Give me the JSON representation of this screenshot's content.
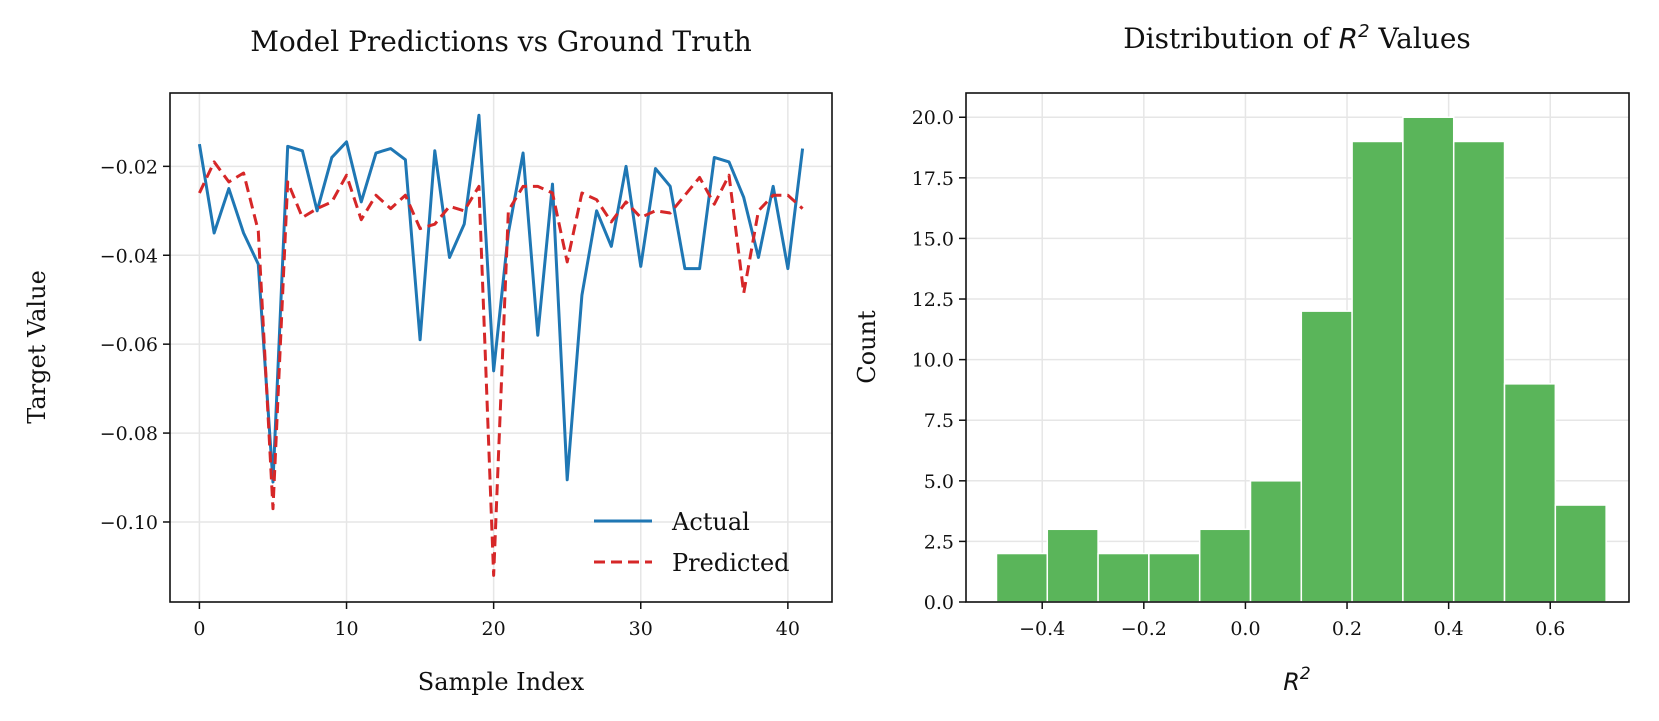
{
  "chart_data": [
    {
      "type": "line",
      "title": "Model Predictions vs Ground Truth",
      "xlabel": "Sample Index",
      "ylabel": "Target Value",
      "xlim": [
        -2,
        43
      ],
      "ylim": [
        -0.118,
        -0.0035
      ],
      "xticks": [
        0,
        10,
        20,
        30,
        40
      ],
      "xtick_labels": [
        "0",
        "10",
        "20",
        "30",
        "40"
      ],
      "yticks": [
        -0.02,
        -0.04,
        -0.06,
        -0.08,
        -0.1
      ],
      "ytick_labels": [
        "−0.02",
        "−0.04",
        "−0.06",
        "−0.08",
        "−0.10"
      ],
      "grid": true,
      "legend_position": "lower-right",
      "series": [
        {
          "name": "Actual",
          "color": "#1f77b4",
          "style": "solid",
          "values": [
            -0.015,
            -0.035,
            -0.025,
            -0.035,
            -0.042,
            -0.091,
            -0.0155,
            -0.0165,
            -0.03,
            -0.018,
            -0.0145,
            -0.028,
            -0.017,
            -0.016,
            -0.0185,
            -0.059,
            -0.0165,
            -0.0405,
            -0.033,
            -0.0085,
            -0.066,
            -0.035,
            -0.017,
            -0.058,
            -0.024,
            -0.0905,
            -0.049,
            -0.03,
            -0.038,
            -0.02,
            -0.0425,
            -0.0205,
            -0.0245,
            -0.043,
            -0.043,
            -0.018,
            -0.019,
            -0.027,
            -0.0405,
            -0.0245,
            -0.043,
            -0.016
          ]
        },
        {
          "name": "Predicted",
          "color": "#d62728",
          "style": "dashed",
          "values": [
            -0.026,
            -0.019,
            -0.0235,
            -0.0215,
            -0.0345,
            -0.097,
            -0.0235,
            -0.0315,
            -0.0295,
            -0.028,
            -0.022,
            -0.032,
            -0.0265,
            -0.0295,
            -0.0265,
            -0.034,
            -0.033,
            -0.029,
            -0.03,
            -0.0245,
            -0.112,
            -0.03,
            -0.0245,
            -0.0245,
            -0.026,
            -0.0415,
            -0.026,
            -0.0275,
            -0.0325,
            -0.028,
            -0.0315,
            -0.03,
            -0.0305,
            -0.0265,
            -0.0225,
            -0.0285,
            -0.022,
            -0.0485,
            -0.03,
            -0.0265,
            -0.0265,
            -0.0295
          ]
        }
      ]
    },
    {
      "type": "bar",
      "title": "Distribution of R² Values",
      "title_prefix": "Distribution of",
      "title_math": "R",
      "title_sup": "2",
      "title_suffix": "Values",
      "xlabel": "R²",
      "xlabel_math": "R",
      "xlabel_sup": "2",
      "ylabel": "Count",
      "xlim": [
        -0.55,
        0.755
      ],
      "ylim": [
        0,
        21
      ],
      "xticks": [
        -0.4,
        -0.2,
        0.0,
        0.2,
        0.4,
        0.6
      ],
      "xtick_labels": [
        "−0.4",
        "−0.2",
        "0.0",
        "0.2",
        "0.4",
        "0.6"
      ],
      "yticks": [
        0,
        2.5,
        5,
        7.5,
        10,
        12.5,
        15,
        17.5,
        20
      ],
      "ytick_labels": [
        "0.0",
        "2.5",
        "5.0",
        "7.5",
        "10.0",
        "12.5",
        "15.0",
        "17.5",
        "20.0"
      ],
      "grid": true,
      "color": "#5ab55a",
      "bin_edges": [
        -0.49,
        -0.39,
        -0.29,
        -0.19,
        -0.09,
        0.01,
        0.11,
        0.21,
        0.31,
        0.41,
        0.51,
        0.61,
        0.71
      ],
      "values": [
        2,
        3,
        2,
        2,
        3,
        5,
        12,
        19,
        20,
        19,
        9,
        4
      ]
    }
  ]
}
